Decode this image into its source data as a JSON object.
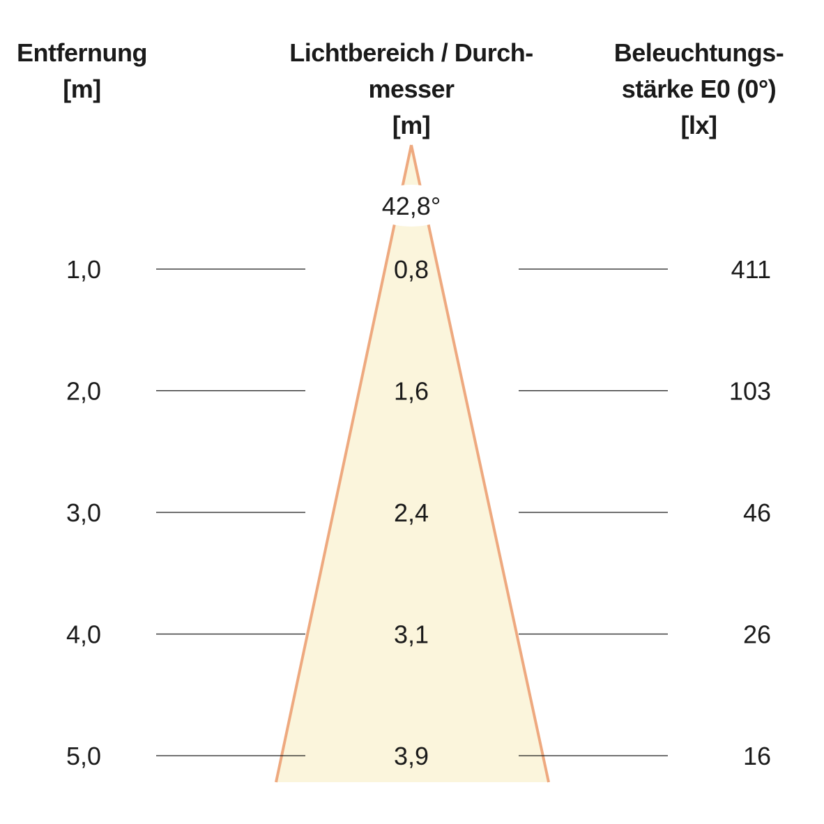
{
  "headers": {
    "distance": {
      "line1": "Entfernung",
      "line2": "",
      "line3": "[m]"
    },
    "diameter": {
      "line1": "Lichtbereich / Durch-",
      "line2": "messer",
      "line3": "[m]"
    },
    "illuminance": {
      "line1": "Beleuchtungs-",
      "line2": "stärke E0 (0°)",
      "line3": "[lx]"
    }
  },
  "beam_angle": "42,8°",
  "colors": {
    "beam_fill": "#fbf5dc",
    "beam_edge": "#eea97f",
    "rule": "#1a1a1a",
    "text": "#1a1a1a"
  },
  "rows": [
    {
      "distance": "1,0",
      "diameter": "0,8",
      "illuminance": "411"
    },
    {
      "distance": "2,0",
      "diameter": "1,6",
      "illuminance": "103"
    },
    {
      "distance": "3,0",
      "diameter": "2,4",
      "illuminance": "46"
    },
    {
      "distance": "4,0",
      "diameter": "3,1",
      "illuminance": "26"
    },
    {
      "distance": "5,0",
      "diameter": "3,9",
      "illuminance": "16"
    }
  ]
}
